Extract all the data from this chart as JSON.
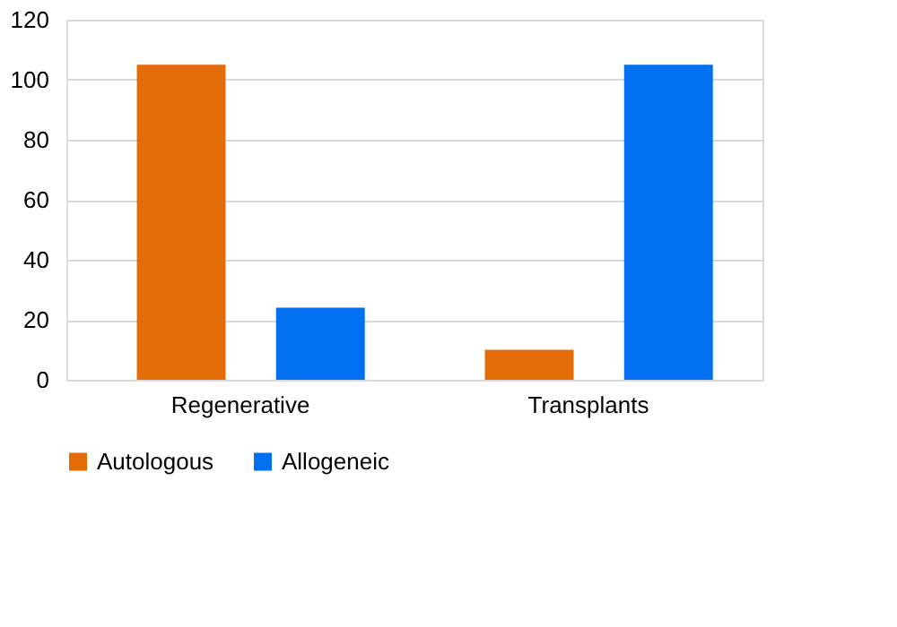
{
  "chart_data": {
    "type": "bar",
    "categories": [
      "Regenerative",
      "Transplants"
    ],
    "series": [
      {
        "name": "Autologous",
        "color": "#e36c09",
        "values": [
          105,
          10
        ]
      },
      {
        "name": "Allogeneic",
        "color": "#0070f0",
        "values": [
          24,
          105
        ]
      }
    ],
    "ylim": [
      0,
      120
    ],
    "yticks": [
      0,
      20,
      40,
      60,
      80,
      100,
      120
    ],
    "grid": "y",
    "legend": "bottom"
  }
}
